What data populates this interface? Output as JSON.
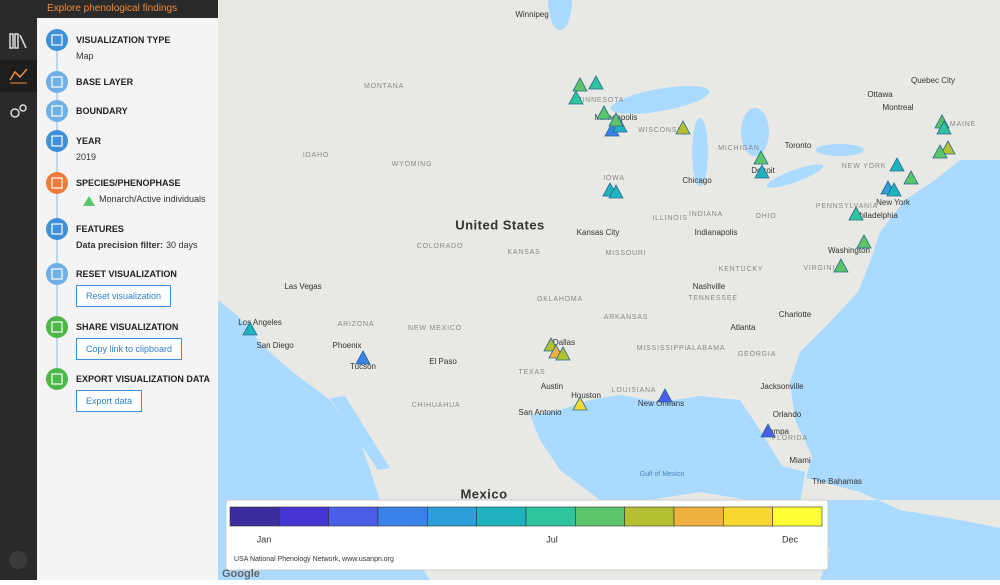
{
  "sidebar_header": "Explore phenological findings",
  "steps": [
    {
      "title": "VISUALIZATION TYPE",
      "value": "Map"
    },
    {
      "title": "BASE LAYER"
    },
    {
      "title": "BOUNDARY"
    },
    {
      "title": "YEAR",
      "value": "2019"
    },
    {
      "title": "SPECIES/PHENOPHASE",
      "value": "Monarch/Active individuals"
    },
    {
      "title": "FEATURES",
      "value_label": "Data precision filter:",
      "value": "30 days"
    },
    {
      "title": "RESET VISUALIZATION",
      "button": "Reset visualization"
    },
    {
      "title": "SHARE VISUALIZATION",
      "button": "Copy link to clipboard"
    },
    {
      "title": "EXPORT VISUALIZATION DATA",
      "button": "Export data"
    }
  ],
  "map": {
    "labels": [
      "United States",
      "Mexico",
      "Winnipeg",
      "Ottawa",
      "Montreal",
      "Quebec City",
      "Toronto",
      "Detroit",
      "Chicago",
      "Minneapolis",
      "Kansas City",
      "Indianapolis",
      "Nashville",
      "Atlanta",
      "Charlotte",
      "Washington",
      "Philadelphia",
      "New York",
      "Dallas",
      "Austin",
      "Houston",
      "San Antonio",
      "New Orleans",
      "Jacksonville",
      "Orlando",
      "Tampa",
      "Miami",
      "Las Vegas",
      "Los Angeles",
      "San Diego",
      "Phoenix",
      "Tucson",
      "El Paso",
      "MONTANA",
      "IDAHO",
      "WYOMING",
      "COLORADO",
      "KANSAS",
      "MISSOURI",
      "ILLINOIS",
      "INDIANA",
      "OHIO",
      "MICHIGAN",
      "WISCONSIN",
      "MINNESOTA",
      "IOWA",
      "ARIZONA",
      "NEW MEXICO",
      "OKLAHOMA",
      "TEXAS",
      "ARKANSAS",
      "LOUISIANA",
      "MISSISSIPPI",
      "ALABAMA",
      "GEORGIA",
      "FLORIDA",
      "TENNESSEE",
      "KENTUCKY",
      "VIRGINIA",
      "PENNSYLVANIA",
      "NEW YORK",
      "MAINE",
      "CHIHUAHUA",
      "Gulf of Mexico",
      "The Bahamas"
    ]
  },
  "legend": {
    "colors": [
      "#3b2ca0",
      "#4535d2",
      "#4a5fe9",
      "#3a82e8",
      "#2d9fd8",
      "#1fb3c0",
      "#2ec4a0",
      "#5cc46a",
      "#b4c030",
      "#f0b040",
      "#f8d830",
      "#ffff33"
    ],
    "ticks": [
      "Jan",
      "Jul",
      "Dec"
    ],
    "source": "USA National Phenology Network, www.usanpn.org"
  },
  "attribution": "Google"
}
